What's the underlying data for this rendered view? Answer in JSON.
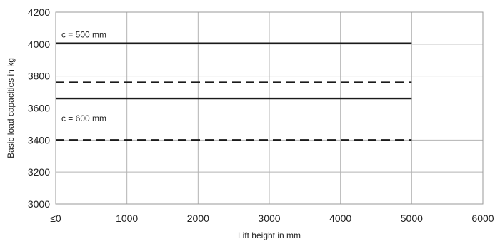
{
  "chart_data": {
    "type": "line",
    "xlabel": "Lift height in mm",
    "ylabel": "Basic load capacities in kg",
    "xlim": [
      0,
      6000
    ],
    "ylim": [
      3000,
      4200
    ],
    "x_ticks": [
      0,
      1000,
      2000,
      3000,
      4000,
      5000,
      6000
    ],
    "x_tick_labels": [
      "≤0",
      "1000",
      "2000",
      "3000",
      "4000",
      "5000",
      "6000"
    ],
    "y_ticks": [
      3000,
      3200,
      3400,
      3600,
      3800,
      4000,
      4200
    ],
    "y_tick_labels": [
      "3000",
      "3200",
      "3400",
      "3600",
      "3800",
      "4000",
      "4200"
    ],
    "grid": true,
    "series": [
      {
        "style": "solid",
        "color": "#1a1a1a",
        "x": [
          0,
          5000
        ],
        "y": [
          4005,
          4005
        ]
      },
      {
        "style": "dashed",
        "color": "#1a1a1a",
        "x": [
          0,
          5000
        ],
        "y": [
          3760,
          3760
        ]
      },
      {
        "style": "solid",
        "color": "#1a1a1a",
        "x": [
          0,
          5000
        ],
        "y": [
          3660,
          3660
        ]
      },
      {
        "style": "dashed",
        "color": "#1a1a1a",
        "x": [
          0,
          5000
        ],
        "y": [
          3400,
          3400
        ]
      }
    ],
    "annotations": [
      {
        "text": "c = 500 mm",
        "x": 80,
        "y": 4060
      },
      {
        "text": "c = 600 mm",
        "x": 80,
        "y": 3535
      }
    ]
  }
}
